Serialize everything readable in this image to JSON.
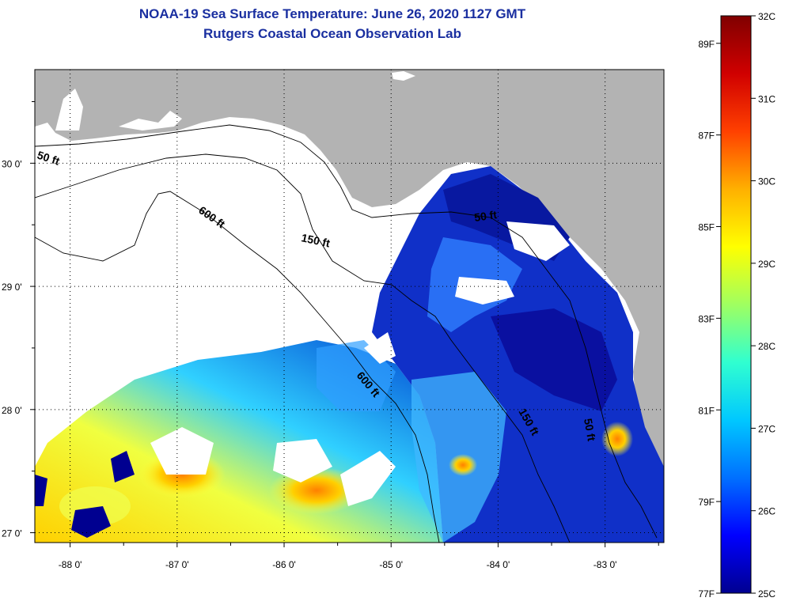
{
  "title": "NOAA-19 Sea Surface Temperature:  June 26, 2020 1127 GMT",
  "subtitle": "Rutgers Coastal Ocean Observation Lab",
  "map": {
    "lon_range": [
      -88.33,
      -82.45
    ],
    "lat_range": [
      26.92,
      30.76
    ],
    "x_ticks": [
      {
        "value": -88,
        "label": "-88 0'"
      },
      {
        "value": -87,
        "label": "-87 0'"
      },
      {
        "value": -86,
        "label": "-86 0'"
      },
      {
        "value": -85,
        "label": "-85 0'"
      },
      {
        "value": -84,
        "label": "-84 0'"
      },
      {
        "value": -83,
        "label": "-83 0'"
      }
    ],
    "y_ticks": [
      {
        "value": 30,
        "label": "30 0'"
      },
      {
        "value": 29,
        "label": "29 0'"
      },
      {
        "value": 28,
        "label": "28 0'"
      },
      {
        "value": 27,
        "label": "27 0'"
      }
    ],
    "contour_labels": [
      "50 ft",
      "600 ft",
      "150 ft",
      "50 ft",
      "600 ft",
      "150 ft",
      "50 ft"
    ],
    "land_color": "#b3b3b3"
  },
  "colorbar": {
    "celsius_labels": [
      "32C",
      "31C",
      "30C",
      "29C",
      "28C",
      "27C",
      "26C",
      "25C"
    ],
    "fahrenheit_labels": [
      "89F",
      "87F",
      "85F",
      "83F",
      "81F",
      "79F",
      "77F"
    ],
    "colors": [
      "#000090",
      "#0000ff",
      "#0070ff",
      "#00c8ff",
      "#30ffd0",
      "#a0ff60",
      "#ffff00",
      "#ffb000",
      "#ff4000",
      "#d00000",
      "#800000"
    ]
  }
}
